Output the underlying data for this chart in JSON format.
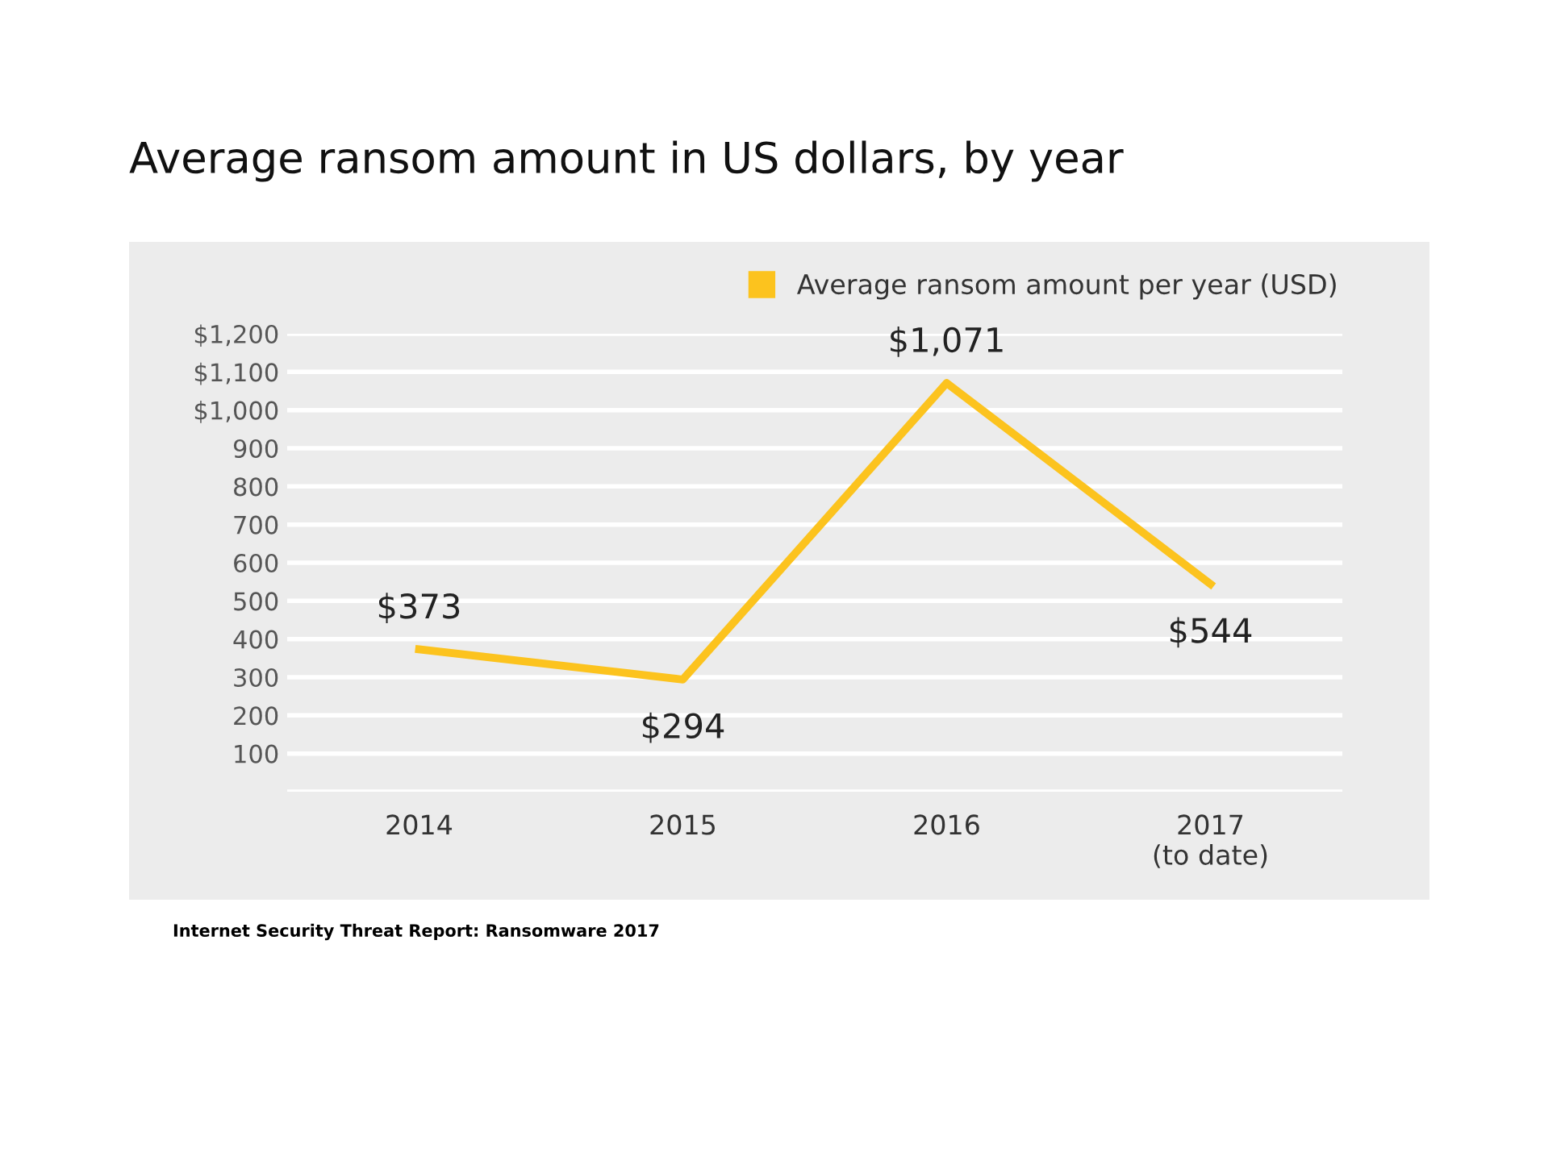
{
  "chart_data": {
    "type": "line",
    "title": "Average ransom amount in US dollars, by year",
    "categories": [
      "2014",
      "2015",
      "2016",
      "2017\n(to date)"
    ],
    "series": [
      {
        "name": "Average ransom amount per year (USD)",
        "color": "#fcc31e",
        "values": [
          373,
          294,
          1071,
          544
        ],
        "value_labels": [
          "$373",
          "$294",
          "$1,071",
          "$544"
        ]
      }
    ],
    "ylim": [
      0,
      1200
    ],
    "yticks": [
      {
        "value": 0,
        "label": null
      },
      100,
      200,
      300,
      400,
      500,
      600,
      700,
      800,
      900,
      {
        "value": 1000,
        "label": "$1,000"
      },
      {
        "value": 1100,
        "label": "$1,100"
      },
      {
        "value": 1200,
        "label": "$1,200"
      }
    ],
    "grid": "y",
    "legend": "top right",
    "marker": "none",
    "line_style": "solid",
    "annotations": [
      "Internet Security Threat Report: Ransomware 2017"
    ]
  }
}
